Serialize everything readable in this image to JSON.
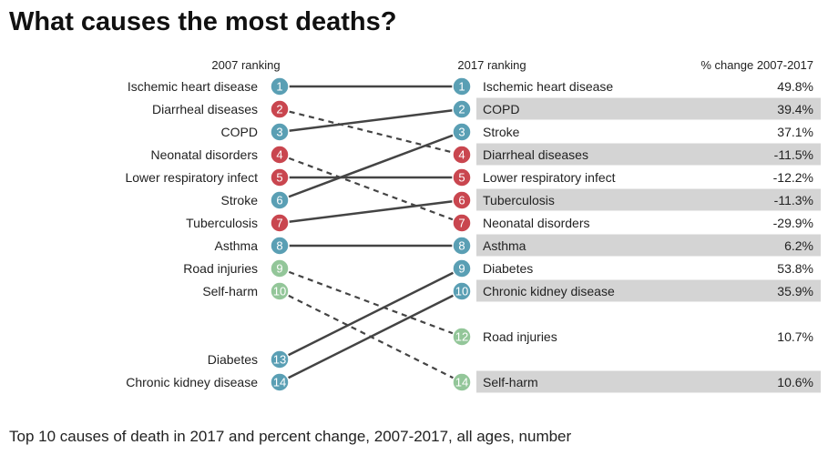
{
  "title": "What causes the most deaths?",
  "subtitle": "Top 10 causes of death in 2017 and percent change, 2007-2017, all ages, number",
  "chart_data": {
    "type": "slope",
    "left_header": "2007 ranking",
    "right_header": "2017 ranking",
    "change_header": "% change 2007-2017",
    "colors": {
      "ncd": "#5a9fb4",
      "communicable": "#c9464f",
      "injury": "#93c699",
      "solid_line": "#444444",
      "stripe": "#d4d4d4"
    },
    "left": [
      {
        "rank": 1,
        "cause": "Ischemic heart disease",
        "group": "ncd"
      },
      {
        "rank": 2,
        "cause": "Diarrheal diseases",
        "group": "communicable"
      },
      {
        "rank": 3,
        "cause": "COPD",
        "group": "ncd"
      },
      {
        "rank": 4,
        "cause": "Neonatal disorders",
        "group": "communicable"
      },
      {
        "rank": 5,
        "cause": "Lower respiratory infect",
        "group": "communicable"
      },
      {
        "rank": 6,
        "cause": "Stroke",
        "group": "ncd"
      },
      {
        "rank": 7,
        "cause": "Tuberculosis",
        "group": "communicable"
      },
      {
        "rank": 8,
        "cause": "Asthma",
        "group": "ncd"
      },
      {
        "rank": 9,
        "cause": "Road injuries",
        "group": "injury"
      },
      {
        "rank": 10,
        "cause": "Self-harm",
        "group": "injury"
      },
      {
        "rank": 13,
        "cause": "Diabetes",
        "group": "ncd"
      },
      {
        "rank": 14,
        "cause": "Chronic kidney disease",
        "group": "ncd"
      }
    ],
    "right": [
      {
        "rank": 1,
        "cause": "Ischemic heart disease",
        "group": "ncd",
        "change": "49.8%"
      },
      {
        "rank": 2,
        "cause": "COPD",
        "group": "ncd",
        "change": "39.4%"
      },
      {
        "rank": 3,
        "cause": "Stroke",
        "group": "ncd",
        "change": "37.1%"
      },
      {
        "rank": 4,
        "cause": "Diarrheal diseases",
        "group": "communicable",
        "change": "-11.5%"
      },
      {
        "rank": 5,
        "cause": "Lower respiratory infect",
        "group": "communicable",
        "change": "-12.2%"
      },
      {
        "rank": 6,
        "cause": "Tuberculosis",
        "group": "communicable",
        "change": "-11.3%"
      },
      {
        "rank": 7,
        "cause": "Neonatal disorders",
        "group": "communicable",
        "change": "-29.9%"
      },
      {
        "rank": 8,
        "cause": "Asthma",
        "group": "ncd",
        "change": "6.2%"
      },
      {
        "rank": 9,
        "cause": "Diabetes",
        "group": "ncd",
        "change": "53.8%"
      },
      {
        "rank": 10,
        "cause": "Chronic kidney disease",
        "group": "ncd",
        "change": "35.9%"
      },
      {
        "rank": 12,
        "cause": "Road injuries",
        "group": "injury",
        "change": "10.7%"
      },
      {
        "rank": 14,
        "cause": "Self-harm",
        "group": "injury",
        "change": "10.6%"
      }
    ]
  }
}
